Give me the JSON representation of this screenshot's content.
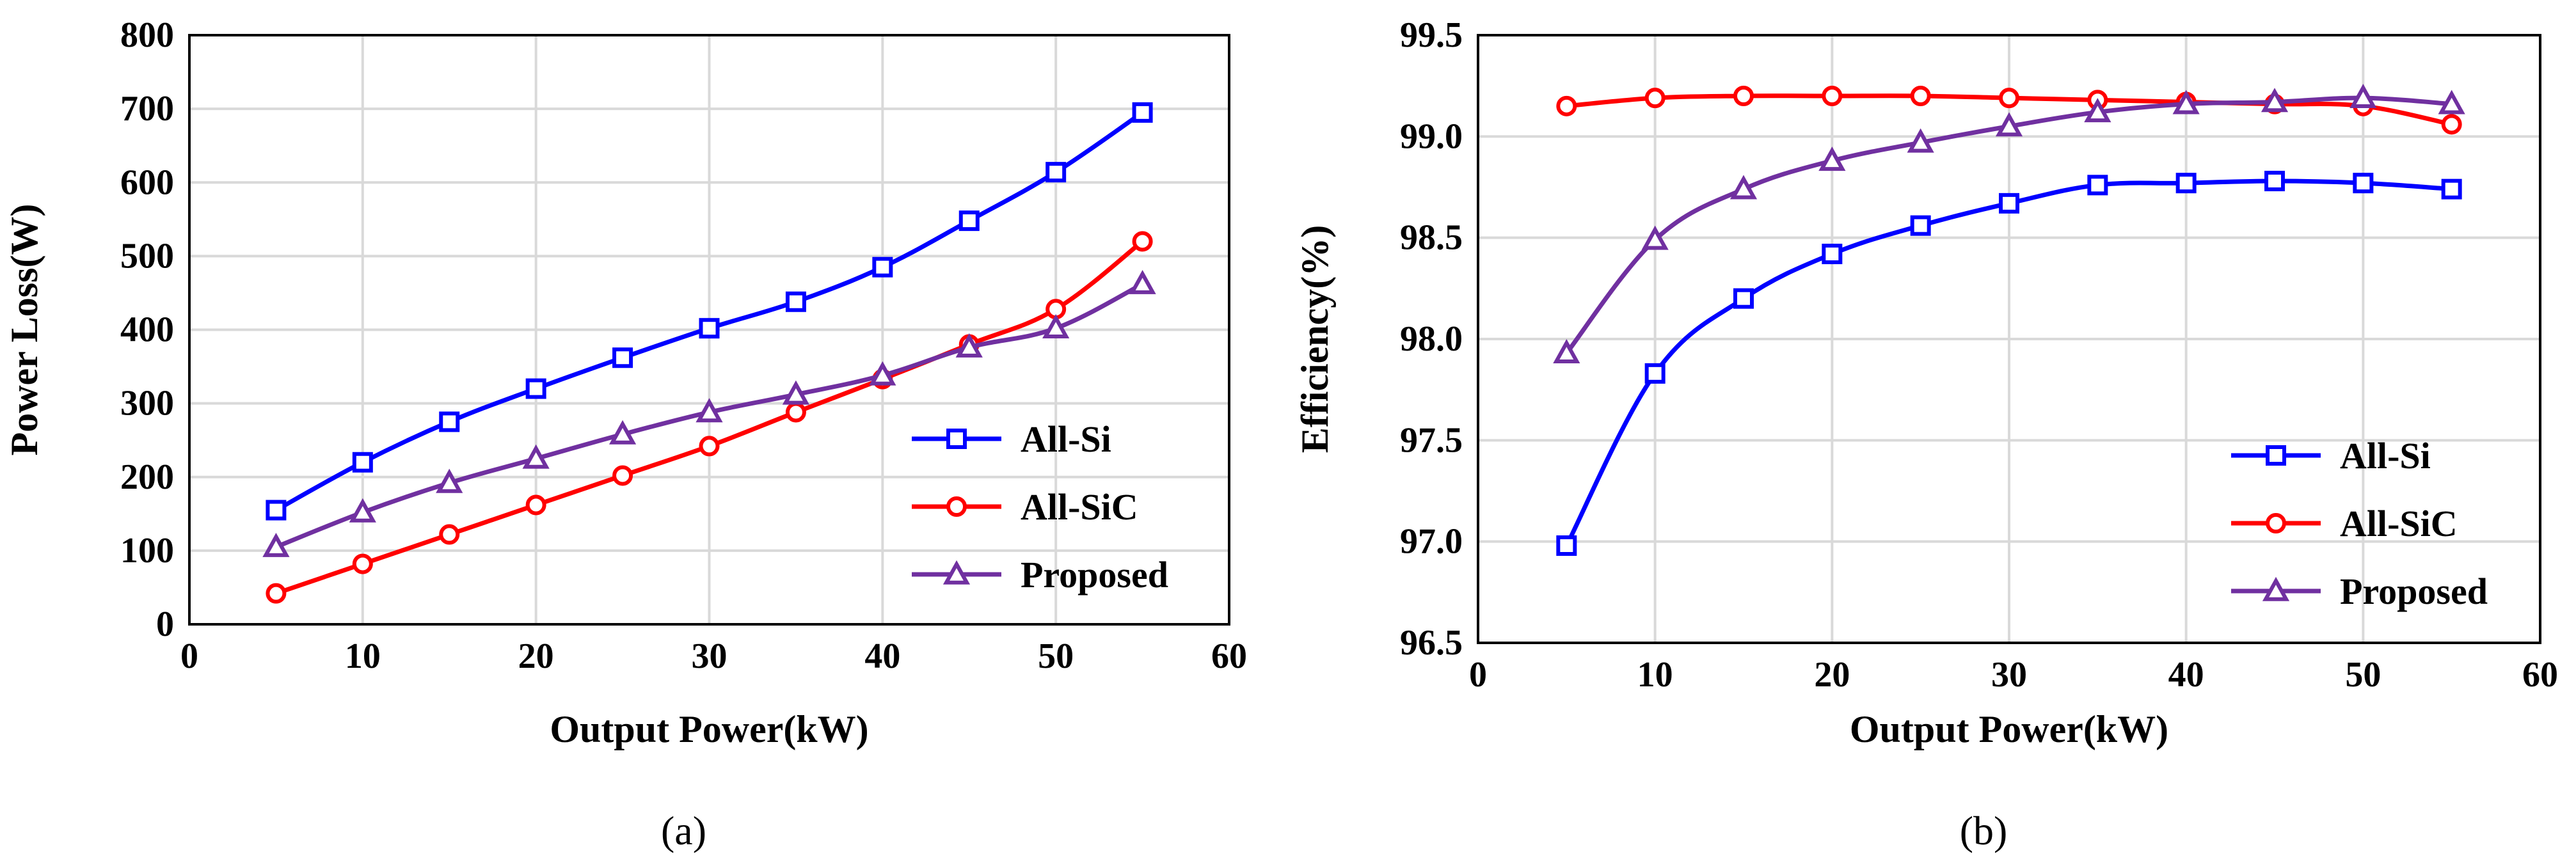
{
  "chart_data": [
    {
      "type": "line",
      "caption": "(a)",
      "xlabel": "Output Power(kW)",
      "ylabel": "Power Loss(W)",
      "xlim": [
        0,
        60
      ],
      "ylim": [
        0,
        800
      ],
      "xticks": [
        0,
        10,
        20,
        30,
        40,
        50,
        60
      ],
      "yticks": [
        0,
        100,
        200,
        300,
        400,
        500,
        600,
        700,
        800
      ],
      "grid": true,
      "legend_position": "bottom-right",
      "x": [
        5,
        10,
        15,
        20,
        25,
        30,
        35,
        40,
        45,
        50,
        55
      ],
      "series": [
        {
          "name": "All-Si",
          "color": "#0000ff",
          "marker": "square",
          "values": [
            155,
            220,
            275,
            320,
            362,
            402,
            438,
            485,
            548,
            614,
            695
          ]
        },
        {
          "name": "All-SiC",
          "color": "#ff0000",
          "marker": "circle",
          "values": [
            42,
            82,
            122,
            162,
            202,
            242,
            288,
            333,
            380,
            428,
            520
          ]
        },
        {
          "name": "Proposed",
          "color": "#7030a0",
          "marker": "triangle",
          "values": [
            105,
            152,
            192,
            225,
            258,
            288,
            312,
            338,
            376,
            402,
            462
          ]
        }
      ]
    },
    {
      "type": "line",
      "caption": "(b)",
      "xlabel": "Output Power(kW)",
      "ylabel": "Efficiency(%)",
      "xlim": [
        0,
        60
      ],
      "ylim": [
        96.5,
        99.5
      ],
      "xticks": [
        0,
        10,
        20,
        30,
        40,
        50,
        60
      ],
      "yticks": [
        96.5,
        97.0,
        97.5,
        98.0,
        98.5,
        99.0,
        99.5
      ],
      "ytick_labels": [
        "96.5",
        "97.0",
        "97.5",
        "98.0",
        "98.5",
        "99.0",
        "99.5"
      ],
      "grid": true,
      "legend_position": "bottom-right",
      "x": [
        5,
        10,
        15,
        20,
        25,
        30,
        35,
        40,
        45,
        50,
        55
      ],
      "series": [
        {
          "name": "All-Si",
          "color": "#0000ff",
          "marker": "square",
          "values": [
            96.98,
            97.83,
            98.2,
            98.42,
            98.56,
            98.67,
            98.76,
            98.77,
            98.78,
            98.77,
            98.74
          ]
        },
        {
          "name": "All-SiC",
          "color": "#ff0000",
          "marker": "circle",
          "values": [
            99.15,
            99.19,
            99.2,
            99.2,
            99.2,
            99.19,
            99.18,
            99.17,
            99.16,
            99.15,
            99.06
          ]
        },
        {
          "name": "Proposed",
          "color": "#7030a0",
          "marker": "triangle",
          "values": [
            97.93,
            98.49,
            98.74,
            98.88,
            98.97,
            99.05,
            99.12,
            99.16,
            99.17,
            99.19,
            99.16
          ]
        }
      ]
    }
  ]
}
